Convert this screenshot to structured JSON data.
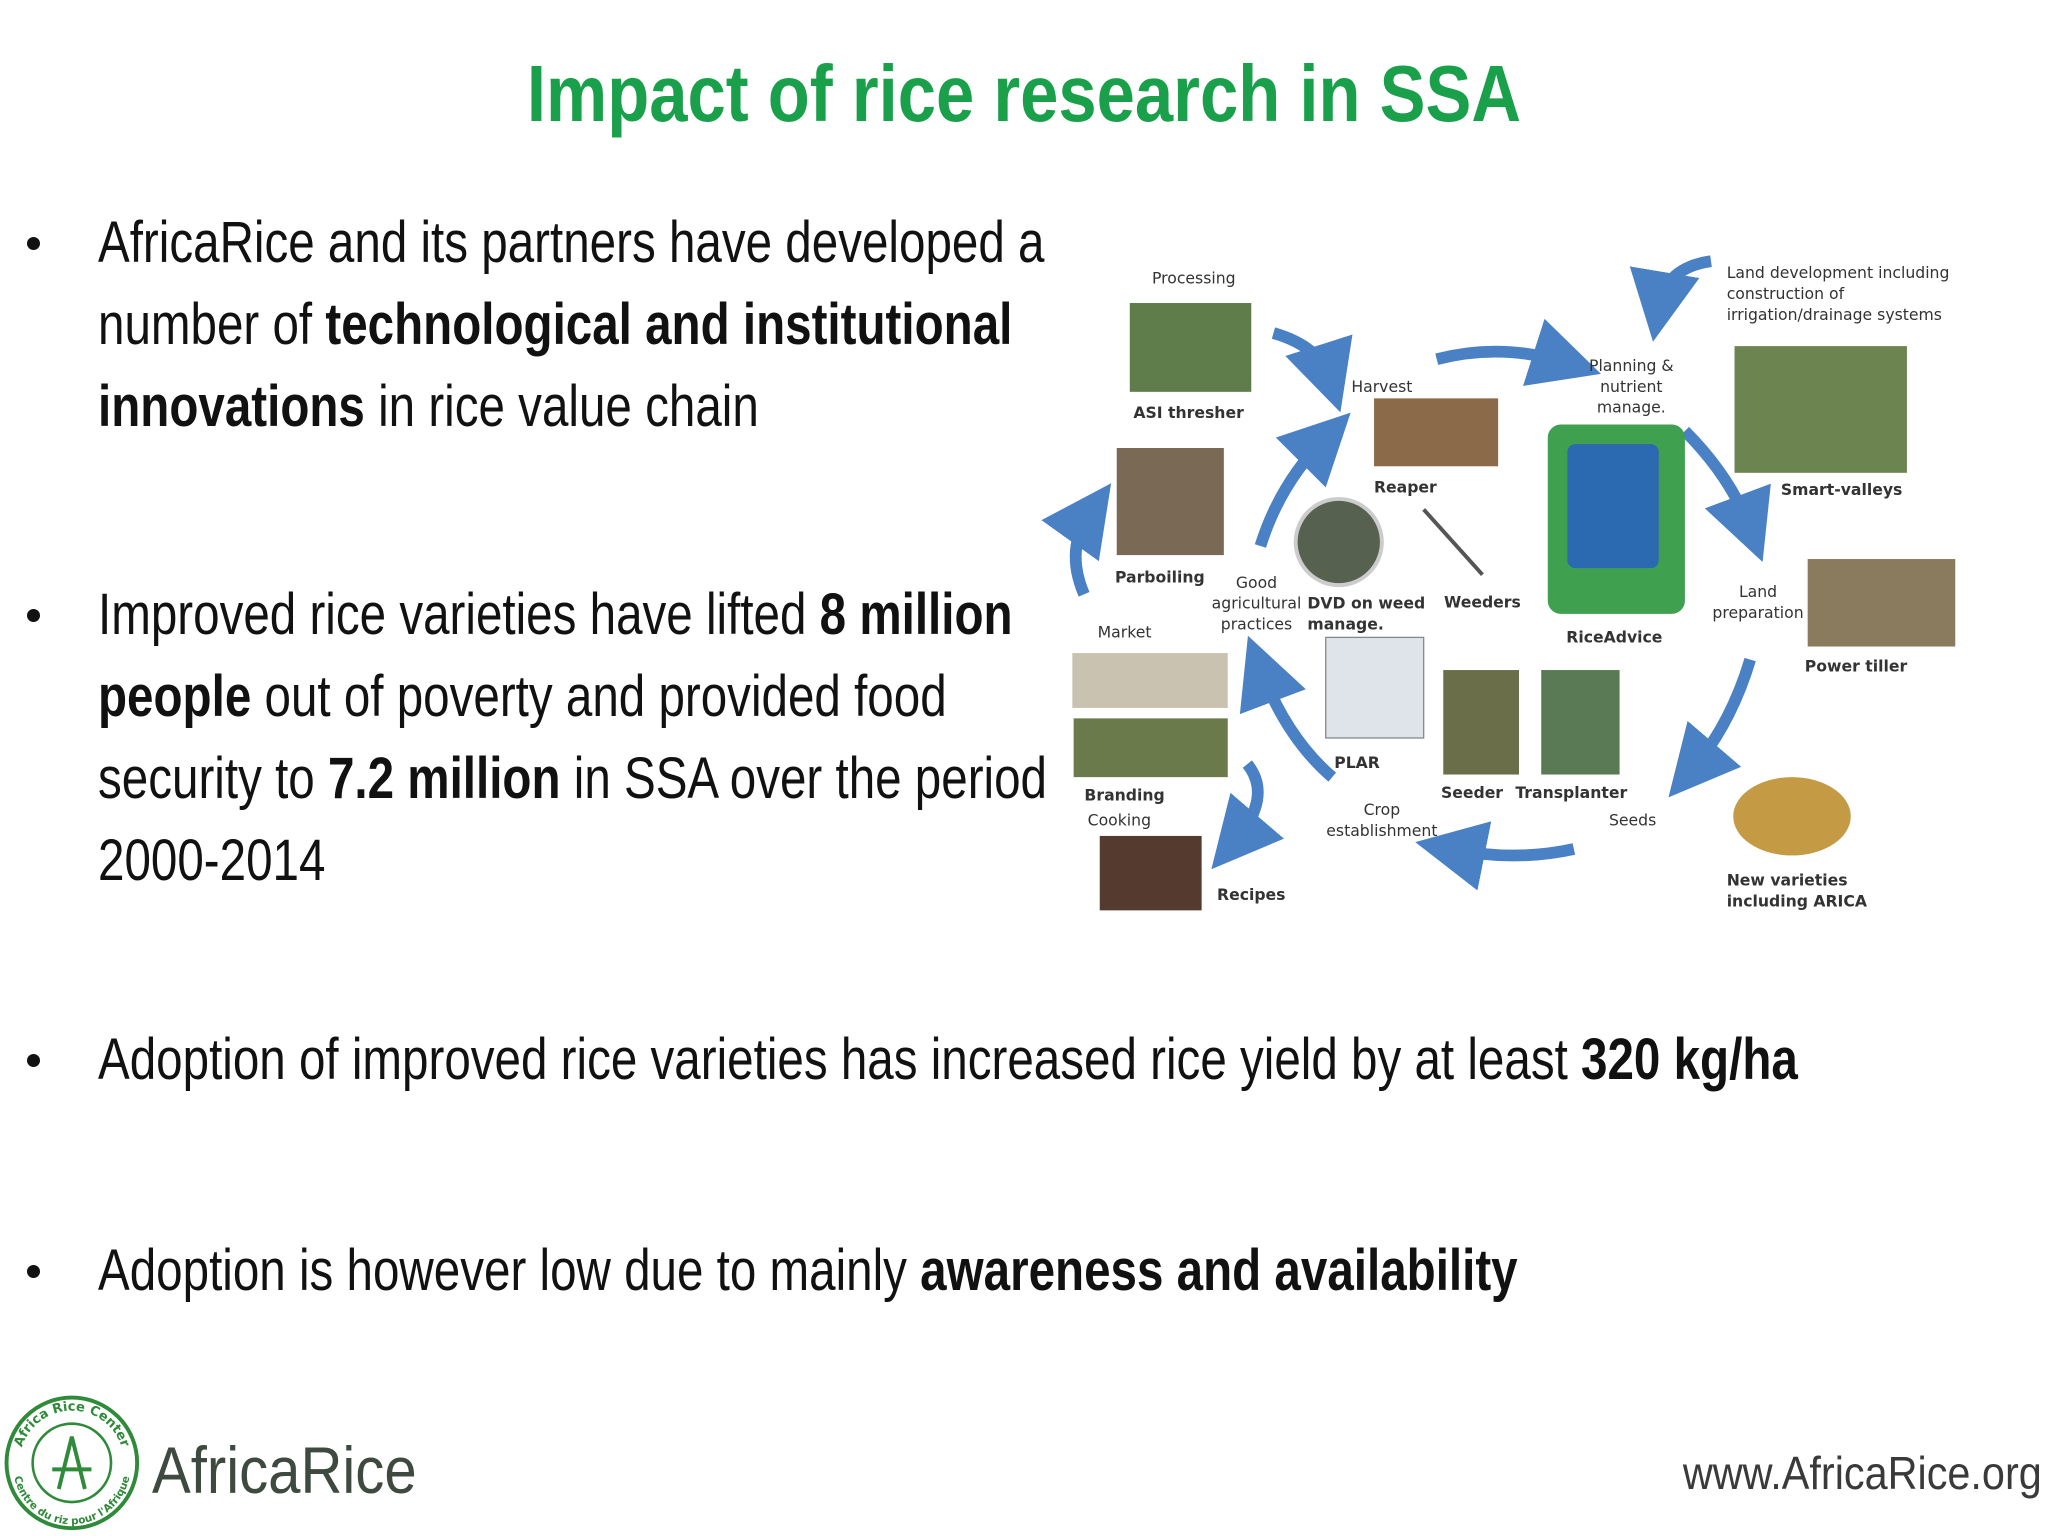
{
  "title": "Impact of rice research in SSA",
  "bullets": [
    {
      "segments": [
        {
          "text": "AfricaRice and its partners have developed a number of ",
          "bold": false
        },
        {
          "text": "technological and institutional innovations",
          "bold": true
        },
        {
          "text": " in rice value chain",
          "bold": false
        }
      ]
    },
    {
      "segments": [
        {
          "text": "Improved rice varieties have lifted ",
          "bold": false
        },
        {
          "text": "8 million people",
          "bold": true
        },
        {
          "text": " out of poverty and provided food security to ",
          "bold": false
        },
        {
          "text": "7.2 million",
          "bold": true
        },
        {
          "text": " in SSA over the period 2000-2014",
          "bold": false
        }
      ]
    },
    {
      "segments": [
        {
          "text": "Adoption of improved rice varieties has increased rice yield by at least ",
          "bold": false
        },
        {
          "text": "320 kg/ha",
          "bold": true
        }
      ]
    },
    {
      "segments": [
        {
          "text": "Adoption is however low due to mainly ",
          "bold": false
        },
        {
          "text": "awareness and availability",
          "bold": true
        }
      ]
    }
  ],
  "diagram": {
    "labels": [
      {
        "lines": [
          "Processing"
        ],
        "bold": false
      },
      {
        "lines": [
          "ASI thresher"
        ],
        "bold": true
      },
      {
        "lines": [
          "Harvest"
        ],
        "bold": false
      },
      {
        "lines": [
          "Reaper"
        ],
        "bold": true
      },
      {
        "lines": [
          "Planning &",
          "nutrient",
          "manage."
        ],
        "bold": false
      },
      {
        "lines": [
          "Land development including",
          "construction of",
          "irrigation/drainage systems"
        ],
        "bold": false
      },
      {
        "lines": [
          "Smart-valleys"
        ],
        "bold": true
      },
      {
        "lines": [
          "Land",
          "preparation"
        ],
        "bold": false
      },
      {
        "lines": [
          "Power tiller"
        ],
        "bold": true
      },
      {
        "lines": [
          "RiceAdvice"
        ],
        "bold": true
      },
      {
        "lines": [
          "Weeders"
        ],
        "bold": true
      },
      {
        "lines": [
          "DVD on weed",
          "manage."
        ],
        "bold": true
      },
      {
        "lines": [
          "Good",
          "agricultural",
          "practices"
        ],
        "bold": false
      },
      {
        "lines": [
          "Parboiling"
        ],
        "bold": true
      },
      {
        "lines": [
          "Market"
        ],
        "bold": false
      },
      {
        "lines": [
          "Branding"
        ],
        "bold": true
      },
      {
        "lines": [
          "Cooking"
        ],
        "bold": false
      },
      {
        "lines": [
          "Recipes"
        ],
        "bold": true
      },
      {
        "lines": [
          "PLAR"
        ],
        "bold": true
      },
      {
        "lines": [
          "Crop",
          "establishment"
        ],
        "bold": false
      },
      {
        "lines": [
          "Seeder"
        ],
        "bold": true
      },
      {
        "lines": [
          "Transplanter"
        ],
        "bold": true
      },
      {
        "lines": [
          "Seeds"
        ],
        "bold": false
      },
      {
        "lines": [
          "New varieties",
          "including ARICA"
        ],
        "bold": true
      }
    ]
  },
  "footer": {
    "logo_name": "AfricaRice",
    "logo_ring_top": "Africa Rice Center",
    "logo_ring_bottom": "Centre du riz pour l'Afrique",
    "url": "www.AfricaRice.org"
  }
}
